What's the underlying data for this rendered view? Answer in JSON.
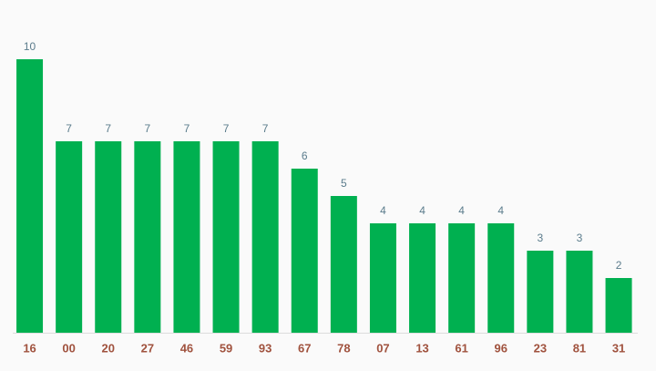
{
  "chart_data": {
    "type": "bar",
    "categories": [
      "16",
      "00",
      "20",
      "27",
      "46",
      "59",
      "93",
      "67",
      "78",
      "07",
      "13",
      "61",
      "96",
      "23",
      "81",
      "31"
    ],
    "values": [
      10,
      7,
      7,
      7,
      7,
      7,
      7,
      6,
      5,
      4,
      4,
      4,
      4,
      3,
      3,
      2
    ],
    "color": "#00b050",
    "ylim": [
      0,
      10
    ]
  }
}
